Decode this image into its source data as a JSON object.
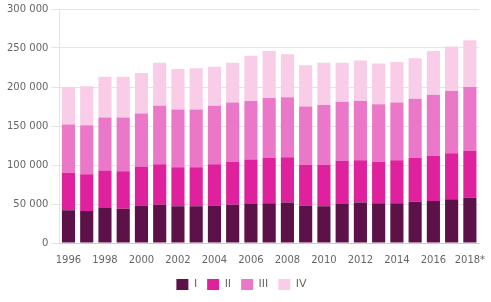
{
  "chart_data": {
    "type": "bar",
    "stacked": true,
    "grid": true,
    "legend": "bottom",
    "categories": [
      "1996",
      null,
      "1998",
      null,
      "2000",
      null,
      "2002",
      null,
      "2004",
      null,
      "2006",
      null,
      "2008",
      null,
      "2010",
      null,
      "2012",
      null,
      "2014",
      null,
      "2016",
      null,
      "2018*"
    ],
    "series": [
      {
        "name": "I",
        "color": "#5c1148",
        "values": [
          42000,
          41000,
          45000,
          44000,
          48000,
          49000,
          47000,
          47000,
          48000,
          49000,
          50000,
          51000,
          52000,
          48000,
          47000,
          50000,
          52000,
          51000,
          51000,
          53000,
          54000,
          56000,
          58000
        ]
      },
      {
        "name": "II",
        "color": "#e0219e",
        "values": [
          48000,
          47000,
          48000,
          48000,
          50000,
          52000,
          50000,
          50000,
          53000,
          55000,
          57000,
          58000,
          58000,
          52000,
          53000,
          55000,
          54000,
          53000,
          55000,
          56000,
          58000,
          59000,
          60000
        ]
      },
      {
        "name": "III",
        "color": "#eb77c8",
        "values": [
          62000,
          63000,
          68000,
          69000,
          68000,
          75000,
          74000,
          74000,
          75000,
          76000,
          75000,
          77000,
          77000,
          75000,
          77000,
          76000,
          76000,
          74000,
          74000,
          76000,
          78000,
          80000,
          82000
        ]
      },
      {
        "name": "IV",
        "color": "#f9cde8",
        "values": [
          48000,
          50000,
          52000,
          52000,
          52000,
          55000,
          52000,
          53000,
          50000,
          51000,
          58000,
          60000,
          55000,
          53000,
          54000,
          50000,
          52000,
          52000,
          52000,
          52000,
          56000,
          57000,
          60000
        ]
      }
    ],
    "ylim": [
      0,
      300000
    ],
    "yticks": [
      0,
      {
        "value": 50000,
        "label": "50 000"
      },
      {
        "value": 100000,
        "label": "100 000"
      },
      {
        "value": 150000,
        "label": "150 000"
      },
      {
        "value": 200000,
        "label": "200 000"
      },
      {
        "value": 250000,
        "label": "250 000"
      },
      {
        "value": 300000,
        "label": "300 000"
      }
    ]
  }
}
